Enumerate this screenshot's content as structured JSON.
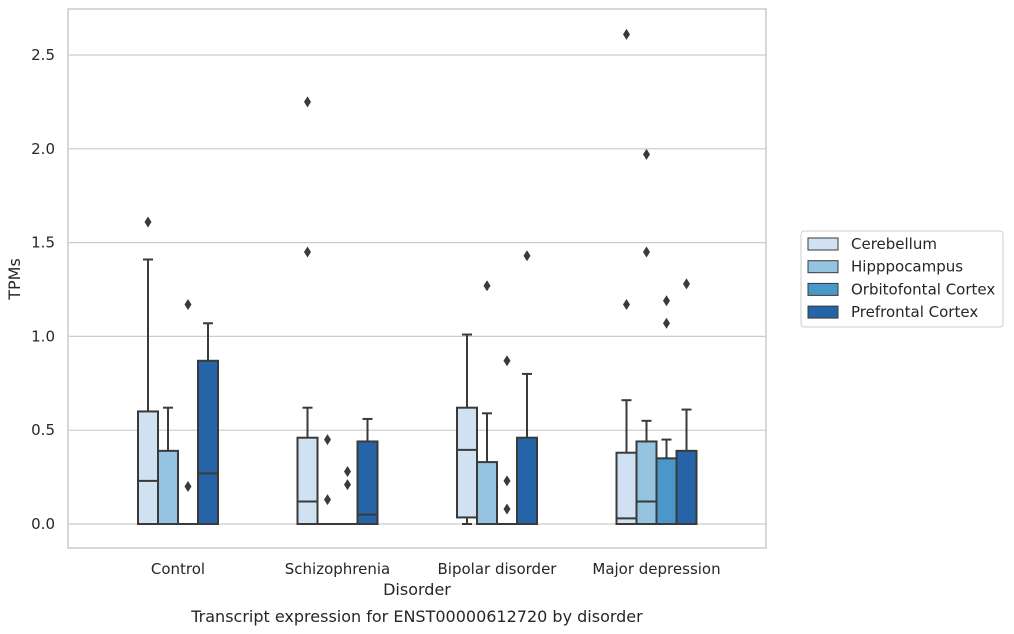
{
  "chart_data": {
    "type": "box",
    "title": "",
    "caption": "Transcript expression for ENST00000612720 by disorder",
    "xlabel": "Disorder",
    "ylabel": "TPMs",
    "ylim": [
      -0.13,
      2.75
    ],
    "yticks": [
      "0.0",
      "0.5",
      "1.0",
      "1.5",
      "2.0",
      "2.5"
    ],
    "grid": true,
    "legend_position": "right",
    "categories": [
      "Control",
      "Schizophrenia",
      "Bipolar disorder",
      "Major depression"
    ],
    "series": [
      {
        "name": "Cerebellum",
        "color": "#d0e1f2",
        "boxes": [
          {
            "q1": 0.0,
            "median": 0.23,
            "q3": 0.6,
            "whisker_low": 0.0,
            "whisker_high": 1.41,
            "outliers": [
              1.61
            ]
          },
          {
            "q1": 0.0,
            "median": 0.12,
            "q3": 0.46,
            "whisker_low": 0.0,
            "whisker_high": 0.62,
            "outliers": [
              1.45,
              2.25
            ]
          },
          {
            "q1": 0.035,
            "median": 0.395,
            "q3": 0.62,
            "whisker_low": 0.0,
            "whisker_high": 1.01,
            "outliers": []
          },
          {
            "q1": 0.0,
            "median": 0.03,
            "q3": 0.38,
            "whisker_low": 0.0,
            "whisker_high": 0.66,
            "outliers": [
              1.17,
              2.61
            ]
          }
        ]
      },
      {
        "name": "Hipppocampus",
        "color": "#94c4df",
        "boxes": [
          {
            "q1": 0.0,
            "median": 0.0,
            "q3": 0.39,
            "whisker_low": 0.0,
            "whisker_high": 0.62,
            "outliers": []
          },
          {
            "q1": 0.0,
            "median": 0.0,
            "q3": 0.0,
            "whisker_low": 0.0,
            "whisker_high": 0.0,
            "outliers": [
              0.13,
              0.45
            ]
          },
          {
            "q1": 0.0,
            "median": 0.0,
            "q3": 0.33,
            "whisker_low": 0.0,
            "whisker_high": 0.59,
            "outliers": [
              1.27
            ]
          },
          {
            "q1": 0.0,
            "median": 0.12,
            "q3": 0.44,
            "whisker_low": 0.0,
            "whisker_high": 0.55,
            "outliers": [
              1.45,
              1.97
            ]
          }
        ]
      },
      {
        "name": "Orbitofontal Cortex",
        "color": "#4a98c9",
        "boxes": [
          {
            "q1": 0.0,
            "median": 0.0,
            "q3": 0.0,
            "whisker_low": 0.0,
            "whisker_high": 0.0,
            "outliers": [
              0.2,
              1.17
            ]
          },
          {
            "q1": 0.0,
            "median": 0.0,
            "q3": 0.0,
            "whisker_low": 0.0,
            "whisker_high": 0.0,
            "outliers": [
              0.21,
              0.28
            ]
          },
          {
            "q1": 0.0,
            "median": 0.0,
            "q3": 0.0,
            "whisker_low": 0.0,
            "whisker_high": 0.0,
            "outliers": [
              0.08,
              0.23,
              0.87
            ]
          },
          {
            "q1": 0.0,
            "median": 0.0,
            "q3": 0.35,
            "whisker_low": 0.0,
            "whisker_high": 0.45,
            "outliers": [
              1.07,
              1.19
            ]
          }
        ]
      },
      {
        "name": "Prefrontal Cortex",
        "color": "#2464a7",
        "boxes": [
          {
            "q1": 0.0,
            "median": 0.27,
            "q3": 0.87,
            "whisker_low": 0.0,
            "whisker_high": 1.07,
            "outliers": []
          },
          {
            "q1": 0.0,
            "median": 0.05,
            "q3": 0.44,
            "whisker_low": 0.0,
            "whisker_high": 0.56,
            "outliers": []
          },
          {
            "q1": 0.0,
            "median": 0.0,
            "q3": 0.46,
            "whisker_low": 0.0,
            "whisker_high": 0.8,
            "outliers": [
              1.43
            ]
          },
          {
            "q1": 0.0,
            "median": 0.0,
            "q3": 0.39,
            "whisker_low": 0.0,
            "whisker_high": 0.61,
            "outliers": [
              1.28
            ]
          }
        ]
      }
    ]
  }
}
